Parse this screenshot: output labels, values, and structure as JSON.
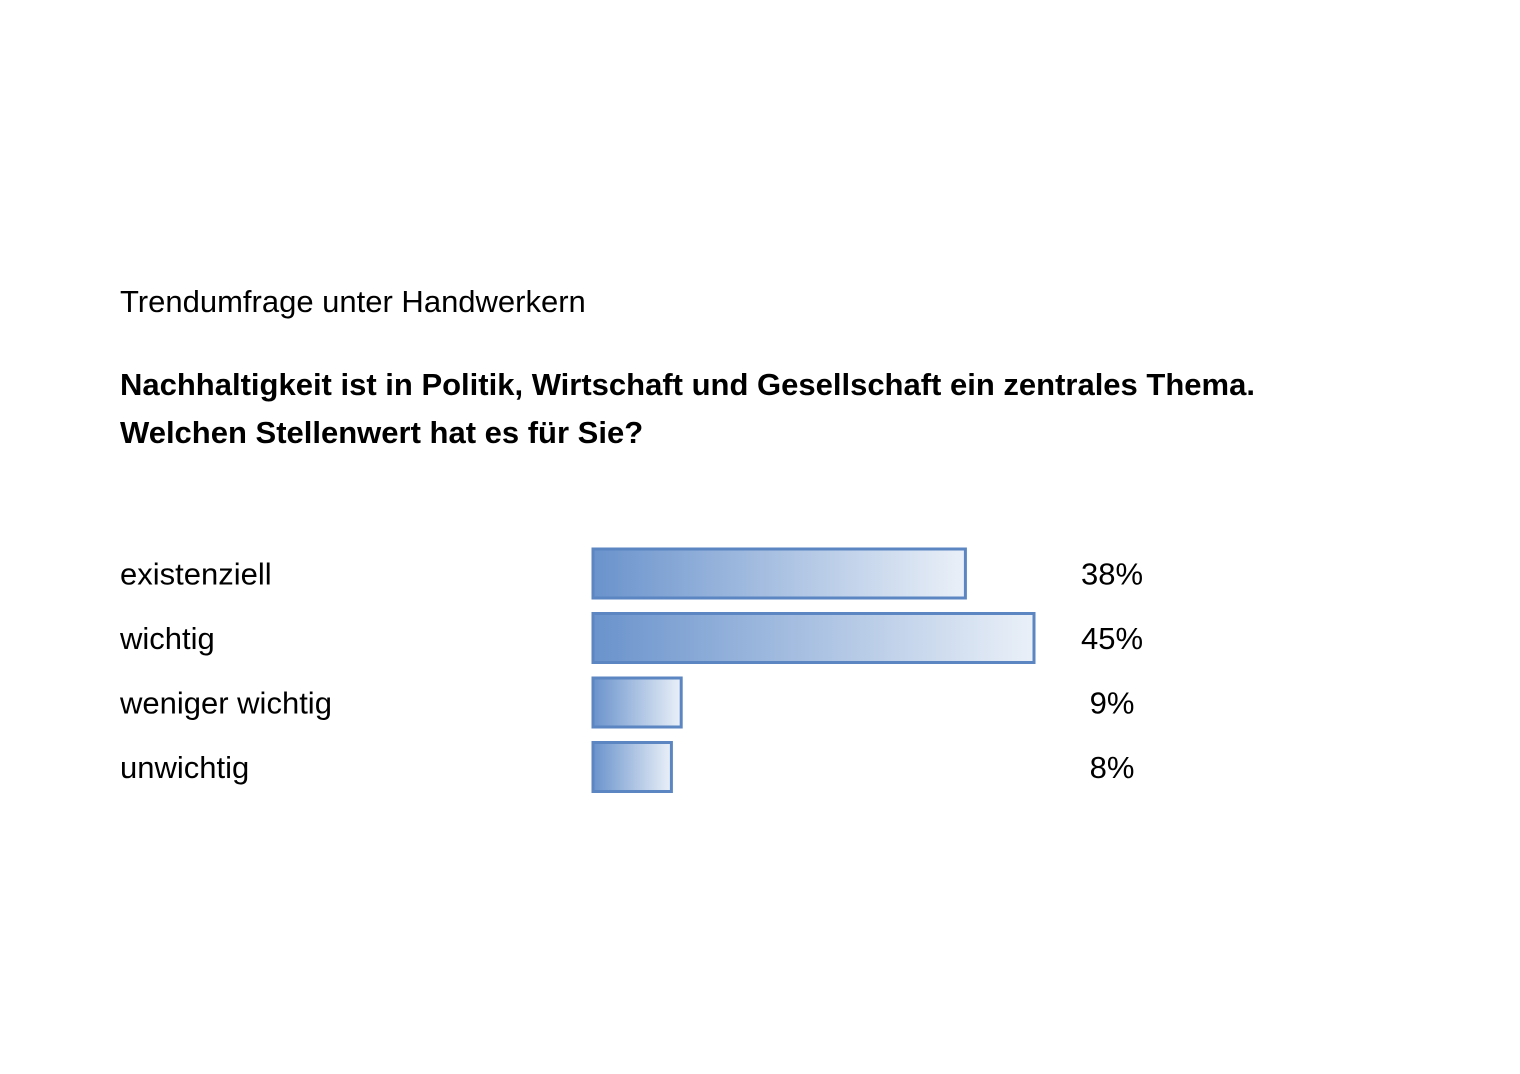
{
  "subtitle": "Trendumfrage unter Handwerkern",
  "question": {
    "line1": "Nachhaltigkeit ist in Politik, Wirtschaft und Gesellschaft ein zentrales Thema.",
    "line2": "Welchen Stellenwert hat es für Sie?"
  },
  "colors": {
    "bar_start": "#6a93cc",
    "bar_end": "#eaf0f8",
    "bar_border": "#5b86c2"
  },
  "chart_data": {
    "type": "bar",
    "orientation": "horizontal",
    "categories": [
      "existenziell",
      "wichtig",
      "weniger wichtig",
      "unwichtig"
    ],
    "values": [
      38,
      45,
      9,
      8
    ],
    "value_labels": [
      "38%",
      "45%",
      "9%",
      "8%"
    ],
    "unit": "%",
    "xlim": [
      0,
      100
    ],
    "grid": false,
    "legend": false
  }
}
